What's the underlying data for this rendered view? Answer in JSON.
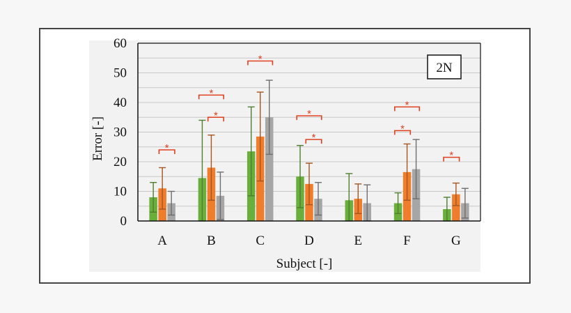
{
  "chart_data": {
    "type": "bar",
    "title": "",
    "panel_label": "2N",
    "xlabel": "Subject [-]",
    "ylabel": "Error [-]",
    "ylim": [
      0,
      60
    ],
    "yticks": [
      0,
      10,
      20,
      30,
      40,
      50,
      60
    ],
    "grid": true,
    "categories": [
      "A",
      "B",
      "C",
      "D",
      "E",
      "F",
      "G"
    ],
    "colors": [
      "#6aaf3b",
      "#ef7d2c",
      "#a6a6a6"
    ],
    "series": [
      {
        "values": [
          8,
          14.5,
          23.5,
          15,
          7,
          6,
          4
        ],
        "errors": [
          5,
          19.5,
          15,
          10.5,
          9,
          3.5,
          4
        ]
      },
      {
        "values": [
          11,
          18,
          28.5,
          12.5,
          7.5,
          16.5,
          9
        ],
        "errors": [
          7,
          11,
          15,
          7,
          5,
          9.5,
          3.8
        ]
      },
      {
        "values": [
          6,
          8.5,
          35,
          7.5,
          6,
          17.5,
          6
        ],
        "errors": [
          4,
          8,
          12.5,
          5.5,
          6.2,
          10,
          5
        ]
      }
    ],
    "significance": [
      {
        "category": "A",
        "from": 1,
        "to": 2,
        "y": 24,
        "label": "*"
      },
      {
        "category": "B",
        "from": 0,
        "to": 2,
        "y": 42.5,
        "label": "*"
      },
      {
        "category": "B",
        "from": 1,
        "to": 2,
        "y": 35,
        "label": "*"
      },
      {
        "category": "C",
        "from": 0,
        "to": 2,
        "y": 54,
        "label": "*"
      },
      {
        "category": "D",
        "from": 0,
        "to": 2,
        "y": 35.5,
        "label": "*"
      },
      {
        "category": "D",
        "from": 1,
        "to": 2,
        "y": 27.5,
        "label": "*"
      },
      {
        "category": "F",
        "from": 0,
        "to": 2,
        "y": 38.5,
        "label": "*"
      },
      {
        "category": "F",
        "from": 0,
        "to": 1,
        "y": 30.5,
        "label": "*"
      },
      {
        "category": "G",
        "from": 0,
        "to": 1,
        "y": 21.5,
        "label": "*"
      }
    ]
  }
}
